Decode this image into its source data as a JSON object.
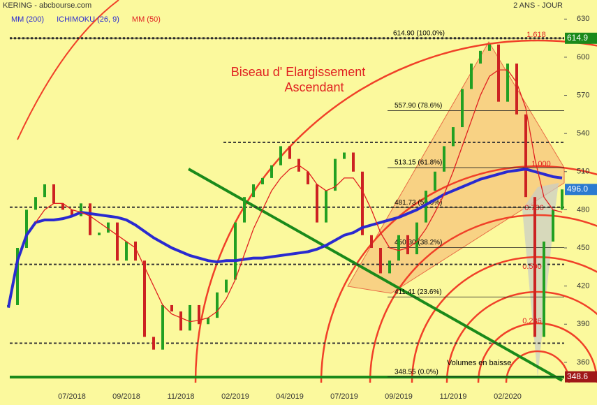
{
  "chart_data": {
    "type": "candle-line",
    "title": "KERING - abcbourse.com",
    "subtitle": "2 ANS - JOUR",
    "annotations": [
      "Biseau d' Elargissement",
      "Ascendant",
      "Volumes en baisse"
    ],
    "fan_labels": [
      "1.618",
      "1.000",
      "0.786",
      "0.500",
      "0.236"
    ],
    "categories": [
      null,
      null,
      null,
      null,
      null,
      null,
      null,
      "07/2018",
      null,
      null,
      null,
      null,
      null,
      "09/2018",
      null,
      null,
      null,
      null,
      null,
      "11/2018",
      null,
      null,
      null,
      null,
      null,
      "02/2019",
      null,
      null,
      null,
      null,
      null,
      "04/2019",
      null,
      null,
      null,
      null,
      null,
      "07/2019",
      null,
      null,
      null,
      null,
      null,
      "09/2019",
      null,
      null,
      null,
      null,
      null,
      "11/2019",
      null,
      null,
      null,
      null,
      null,
      "02/2020",
      null,
      null,
      null,
      null,
      null,
      null
    ],
    "values": [
      405,
      450,
      480,
      490,
      500,
      485,
      480,
      475,
      485,
      460,
      462,
      470,
      440,
      455,
      440,
      380,
      370,
      405,
      400,
      385,
      405,
      390,
      395,
      415,
      425,
      470,
      490,
      500,
      505,
      515,
      530,
      520,
      510,
      500,
      470,
      495,
      520,
      525,
      510,
      460,
      450,
      430,
      440,
      460,
      445,
      470,
      495,
      510,
      530,
      545,
      575,
      595,
      605,
      610,
      565,
      595,
      555,
      490,
      380,
      455,
      480,
      496
    ],
    "up_color": "#22a022",
    "down_color": "#cc2222",
    "series": [
      {
        "name": "MM (200)",
        "color": "#2a2ad0",
        "values": [
          403,
          440,
          460,
          470,
          472,
          472,
          473,
          475,
          478,
          477,
          476,
          475,
          474,
          472,
          468,
          463,
          458,
          454,
          450,
          447,
          444,
          442,
          440,
          439,
          440,
          440,
          441,
          442,
          442,
          443,
          444,
          445,
          446,
          447,
          449,
          452,
          456,
          460,
          462,
          466,
          468,
          470,
          472,
          474,
          477,
          480,
          484,
          488,
          492,
          495,
          498,
          501,
          504,
          506,
          508,
          510,
          511,
          512,
          510,
          508,
          506,
          505
        ]
      },
      {
        "name": "ICHIMOKU (26, 9)",
        "color": "#2a2ad0",
        "values": [
          null,
          null,
          null,
          null,
          null,
          null,
          null,
          null,
          null,
          null,
          null,
          null,
          null,
          null,
          null,
          null,
          null,
          null,
          null,
          null,
          null,
          null,
          null,
          null,
          null,
          null,
          null,
          null,
          null,
          null,
          null,
          null,
          null,
          null,
          null,
          null,
          null,
          null,
          null,
          null,
          null,
          null,
          null,
          null,
          null,
          null,
          null,
          null,
          null,
          null,
          null,
          null,
          null,
          null,
          null,
          null,
          null,
          null,
          null,
          null,
          null,
          null
        ]
      },
      {
        "name": "MM (50)",
        "color": "#e02020",
        "values": [
          null,
          null,
          null,
          470,
          480,
          485,
          485,
          480,
          478,
          475,
          470,
          465,
          460,
          455,
          450,
          435,
          420,
          405,
          398,
          395,
          392,
          393,
          395,
          400,
          410,
          425,
          445,
          465,
          480,
          495,
          505,
          512,
          515,
          510,
          500,
          495,
          498,
          505,
          505,
          495,
          480,
          462,
          450,
          448,
          450,
          455,
          465,
          478,
          492,
          510,
          530,
          550,
          570,
          585,
          590,
          590,
          580,
          560,
          520,
          490,
          480,
          478
        ]
      }
    ],
    "fib_levels": [
      {
        "value": 614.9,
        "label": "614.90  (100.0%)"
      },
      {
        "value": 557.9,
        "label": "557.90  (78.6%)"
      },
      {
        "value": 513.15,
        "label": "513.15  (61.8%)"
      },
      {
        "value": 481.73,
        "label": "481.73  (50.0%)"
      },
      {
        "value": 450.3,
        "label": "450.30  (38.2%)"
      },
      {
        "value": 411.41,
        "label": "411.41  (23.6%)"
      },
      {
        "value": 348.55,
        "label": "348.55  (0.0%)"
      }
    ],
    "dotted_lines": [
      614.9,
      533,
      482,
      437,
      375
    ],
    "price_labels": [
      {
        "value": 614.9,
        "label": "614.9",
        "color": "#1a8a1a"
      },
      {
        "value": 496,
        "label": "496.0",
        "color": "#2a7ad0"
      },
      {
        "value": 348.6,
        "label": "348.6",
        "color": "#a01818"
      }
    ],
    "ylim": [
      344,
      645
    ],
    "yticks": [
      360,
      390,
      420,
      450,
      480,
      510,
      540,
      570,
      600,
      630
    ]
  }
}
